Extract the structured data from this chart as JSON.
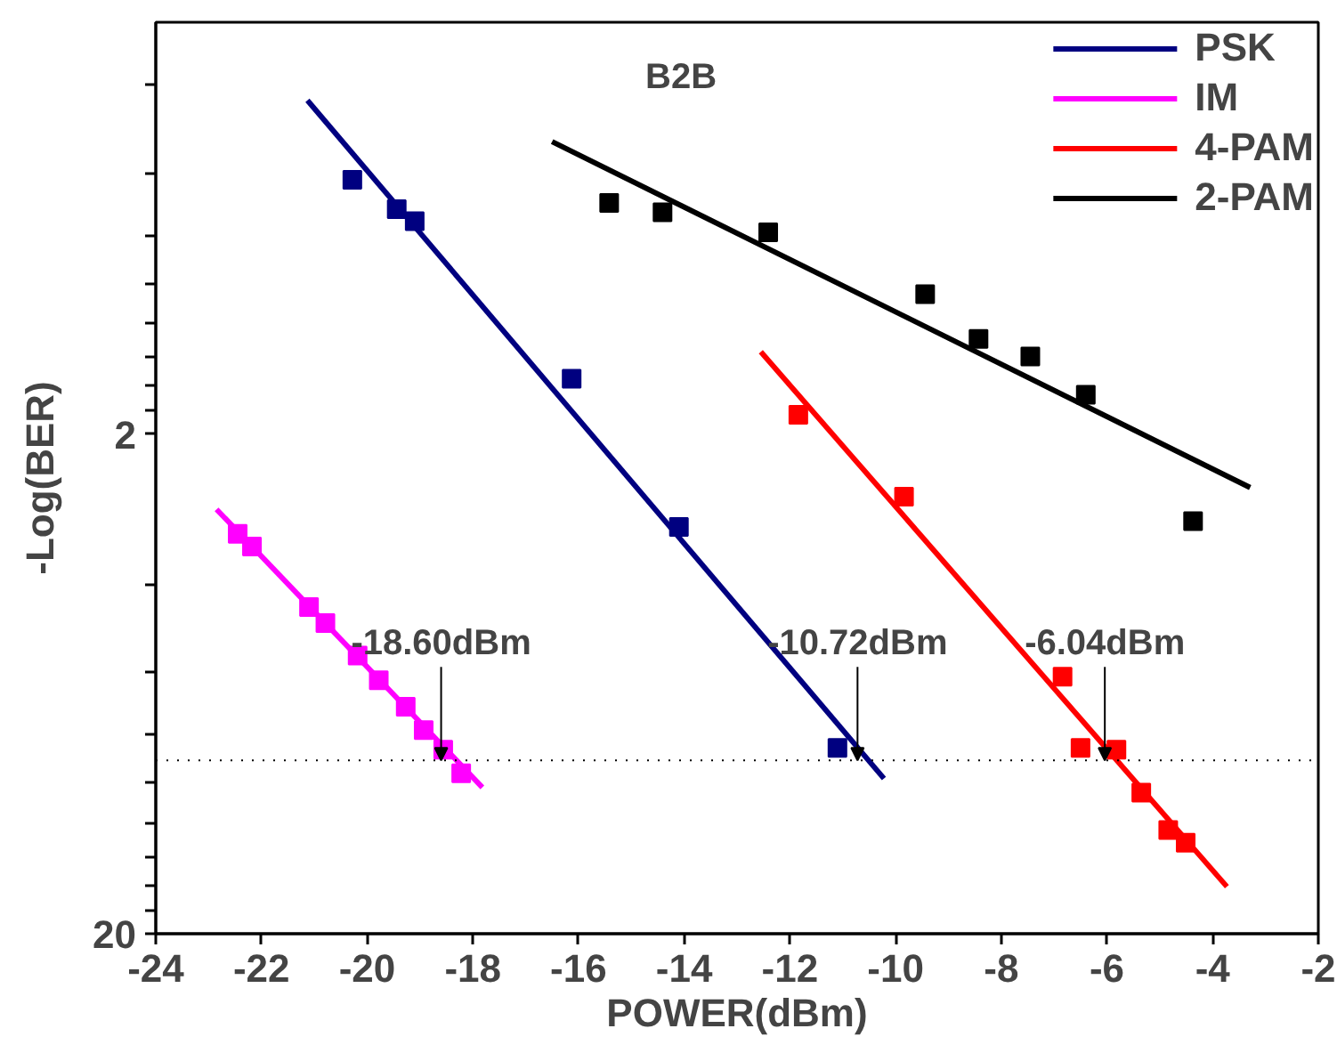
{
  "chart_data": {
    "type": "scatter",
    "xlabel": "POWER(dBm)",
    "ylabel": "-Log(BER)",
    "log": "y",
    "xlim": [
      -24,
      -2
    ],
    "xticks": [
      -24,
      -22,
      -20,
      -18,
      -16,
      -14,
      -12,
      -10,
      -8,
      -6,
      -4,
      -2
    ],
    "ylim": [
      20,
      0.3
    ],
    "yticks": [
      {
        "value": 0.4,
        "label": null
      },
      {
        "value": 0.6,
        "label": null
      },
      {
        "value": 0.8,
        "label": null
      },
      {
        "value": 1.0,
        "label": null
      },
      {
        "value": 1.2,
        "label": null
      },
      {
        "value": 1.4,
        "label": null
      },
      {
        "value": 1.6,
        "label": null
      },
      {
        "value": 1.8,
        "label": null
      },
      2,
      {
        "value": 4,
        "label": null
      },
      {
        "value": 6,
        "label": null
      },
      {
        "value": 8,
        "label": null
      },
      {
        "value": 10,
        "label": null
      },
      {
        "value": 12,
        "label": null
      },
      {
        "value": 14,
        "label": null
      },
      {
        "value": 16,
        "label": null
      },
      {
        "value": 18,
        "label": null
      },
      20
    ],
    "grid": false,
    "legend": "top right",
    "marker": "square",
    "series": [
      {
        "name": "PSK",
        "type": "line",
        "color": "#000080",
        "marker": "none",
        "x": [
          -21.13,
          -10.22
        ],
        "values": [
          0.43,
          9.78
        ]
      },
      {
        "name": "IM",
        "type": "line",
        "color": "#ff00ff",
        "marker": "none",
        "x": [
          -22.85,
          -17.82
        ],
        "values": [
          2.83,
          10.19
        ]
      },
      {
        "name": "4-PAM",
        "type": "line",
        "color": "#ff0000",
        "marker": "none",
        "x": [
          -12.55,
          -3.73
        ],
        "values": [
          1.37,
          16.1
        ]
      },
      {
        "name": "2-PAM",
        "type": "line",
        "color": "#000000",
        "marker": "none",
        "x": [
          -16.5,
          -3.29
        ],
        "values": [
          0.52,
          2.56
        ]
      },
      {
        "color": "#000080",
        "x": [
          -20.28,
          -19.44,
          -19.1,
          -16.13,
          -14.1,
          -11.1
        ],
        "values": [
          0.62,
          0.71,
          0.75,
          1.55,
          3.07,
          8.5
        ]
      },
      {
        "color": "#ff00ff",
        "x": [
          -22.45,
          -22.18,
          -21.1,
          -20.79,
          -20.18,
          -19.78,
          -19.27,
          -18.93,
          -18.56,
          -18.22
        ],
        "values": [
          3.17,
          3.36,
          4.44,
          4.78,
          5.55,
          6.22,
          7.03,
          7.83,
          8.57,
          9.55
        ]
      },
      {
        "color": "#ff0000",
        "x": [
          -11.84,
          -9.84,
          -6.84,
          -6.5,
          -5.82,
          -5.35,
          -4.84,
          -4.51
        ],
        "values": [
          1.83,
          2.67,
          6.12,
          8.5,
          8.57,
          10.44,
          12.4,
          13.15
        ]
      },
      {
        "color": "#000000",
        "x": [
          -15.42,
          -14.41,
          -12.41,
          -9.44,
          -8.43,
          -7.45,
          -6.4,
          -4.37
        ],
        "values": [
          0.69,
          0.72,
          0.79,
          1.05,
          1.29,
          1.4,
          1.67,
          2.99
        ]
      }
    ],
    "ref_lines": [
      {
        "axis": "y",
        "value": 9,
        "color": "#000000",
        "line_style": "dotted"
      }
    ],
    "annotations": [
      "B2B",
      {
        "text": "-18.60dBm",
        "x": -18.6,
        "y": 9
      },
      {
        "text": "-10.72dBm",
        "x": -10.72,
        "y": 9
      },
      {
        "text": "-6.04dBm",
        "x": -6.04,
        "y": 9
      }
    ]
  }
}
